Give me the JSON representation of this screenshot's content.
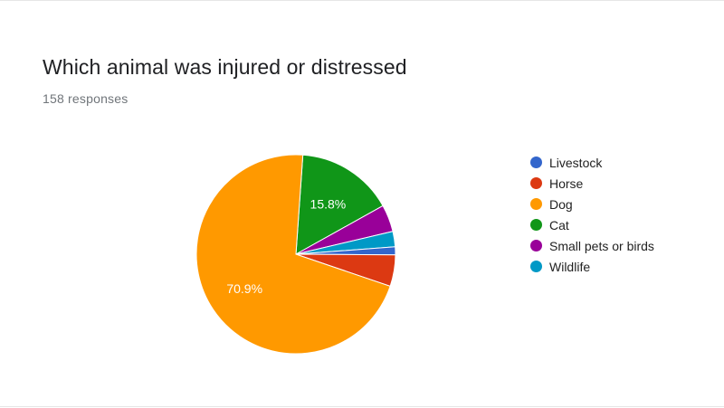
{
  "form": {
    "question": "Which animal was injured or distressed",
    "responses": "158 responses"
  },
  "chart_data": {
    "type": "pie",
    "title": "Which animal was injured or distressed",
    "subtitle": "158 responses",
    "legend_position": "right",
    "categories": [
      "Livestock",
      "Horse",
      "Dog",
      "Cat",
      "Small pets or birds",
      "Wildlife"
    ],
    "values": [
      1.3,
      5.1,
      70.9,
      15.8,
      4.4,
      2.5
    ],
    "colors": [
      "#3366cc",
      "#dc3912",
      "#ff9900",
      "#109618",
      "#990099",
      "#0099c6"
    ],
    "data_labels": [
      "",
      "",
      "70.9%",
      "15.8%",
      "",
      ""
    ]
  }
}
